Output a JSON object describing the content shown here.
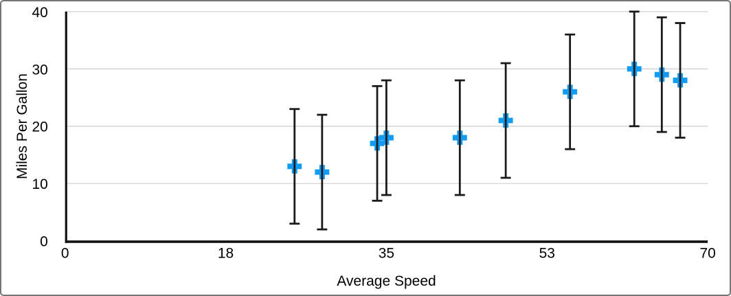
{
  "figure": {
    "kind": "error-bar-scatter-chart",
    "background_color": "#ffffff",
    "border_color": "#757575"
  },
  "chart_data": {
    "type": "scatter",
    "title": "",
    "xlabel": "Average Speed",
    "ylabel": "Miles Per Gallon",
    "xlim": [
      0,
      70
    ],
    "ylim": [
      0,
      40
    ],
    "x_tick_labels": [
      "0",
      "18",
      "35",
      "53",
      "70"
    ],
    "x_tick_values": [
      0,
      17.5,
      35,
      52.5,
      70
    ],
    "y_ticks": [
      0,
      10,
      20,
      30,
      40
    ],
    "grid": "horizontal-gridlines-on",
    "legend": "none",
    "marker": {
      "shape": "plus",
      "size": 21,
      "arm_thickness": 8,
      "color": "#129bf2"
    },
    "error_bars": {
      "type": "symmetric",
      "value": 10,
      "cap_width": 15,
      "color": "#1a1a1a"
    },
    "colors": {
      "axis": "#111111",
      "gridline": "#d8d8d8",
      "tick_text": "#000000"
    },
    "series": [
      {
        "name": "Miles Per Gallon",
        "points": [
          {
            "x": 25,
            "y": 13,
            "err": 10
          },
          {
            "x": 28,
            "y": 12,
            "err": 10
          },
          {
            "x": 34,
            "y": 17,
            "err": 10
          },
          {
            "x": 35,
            "y": 18,
            "err": 10
          },
          {
            "x": 43,
            "y": 18,
            "err": 10
          },
          {
            "x": 48,
            "y": 21,
            "err": 10
          },
          {
            "x": 55,
            "y": 26,
            "err": 10
          },
          {
            "x": 62,
            "y": 30,
            "err": 10
          },
          {
            "x": 65,
            "y": 29,
            "err": 10
          },
          {
            "x": 67,
            "y": 28,
            "err": 10
          }
        ]
      }
    ]
  }
}
